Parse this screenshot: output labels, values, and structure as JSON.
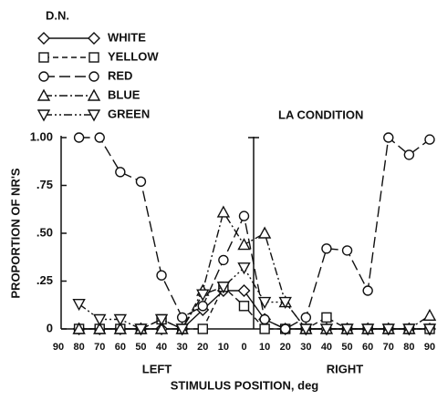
{
  "chart_data": {
    "type": "line",
    "legend_title": "D.N.",
    "annotation": "LA CONDITION",
    "y_label": "PROPORTION OF NR'S",
    "x_label": "STIMULUS POSITION, deg",
    "x_side_labels": [
      "LEFT",
      "RIGHT"
    ],
    "categories": [
      "90",
      "80",
      "70",
      "60",
      "50",
      "40",
      "30",
      "20",
      "10",
      "0",
      "10",
      "20",
      "30",
      "40",
      "50",
      "60",
      "70",
      "80",
      "90"
    ],
    "ylim": [
      0,
      1
    ],
    "yticks": [
      0,
      {
        "value": 0.25,
        "label": ".25"
      },
      {
        "value": 0.5,
        "label": ".50"
      },
      {
        "value": 0.75,
        "label": ".75"
      },
      {
        "value": 1,
        "label": "1.00"
      }
    ],
    "color": "#111111",
    "series": [
      {
        "name": "WHITE",
        "marker": "diamond",
        "dash": "solid",
        "values": [
          null,
          0,
          0,
          0,
          0,
          0,
          0,
          0.1,
          0.2,
          0.2,
          0.05,
          0,
          0,
          0,
          0,
          0,
          0,
          0,
          0
        ]
      },
      {
        "name": "YELLOW",
        "marker": "square",
        "dash": "dashed",
        "values": [
          null,
          0,
          0,
          0,
          0,
          0.05,
          0,
          0,
          0.22,
          0.12,
          0,
          0,
          0,
          0.06,
          0,
          0,
          0,
          0,
          0
        ]
      },
      {
        "name": "RED",
        "marker": "circle",
        "dash": "longdash",
        "values": [
          null,
          1,
          1,
          0.82,
          0.77,
          0.28,
          0.06,
          0.12,
          0.36,
          0.59,
          0.05,
          0,
          0.06,
          0.42,
          0.41,
          0.2,
          1,
          0.91,
          0.99
        ]
      },
      {
        "name": "BLUE",
        "marker": "triangle-up",
        "dash": "dashdot",
        "values": [
          null,
          0,
          0,
          0,
          0,
          0,
          0,
          0.2,
          0.61,
          0.44,
          0.5,
          0.14,
          0,
          0,
          0,
          0,
          0,
          0,
          0.07
        ]
      },
      {
        "name": "GREEN",
        "marker": "triangle-down",
        "dash": "dashdotdot",
        "values": [
          null,
          0.13,
          0.05,
          0.05,
          0,
          0.05,
          0,
          0.18,
          0.22,
          0.32,
          0.14,
          0.14,
          0,
          0,
          0,
          0,
          0,
          0,
          0
        ]
      }
    ]
  }
}
